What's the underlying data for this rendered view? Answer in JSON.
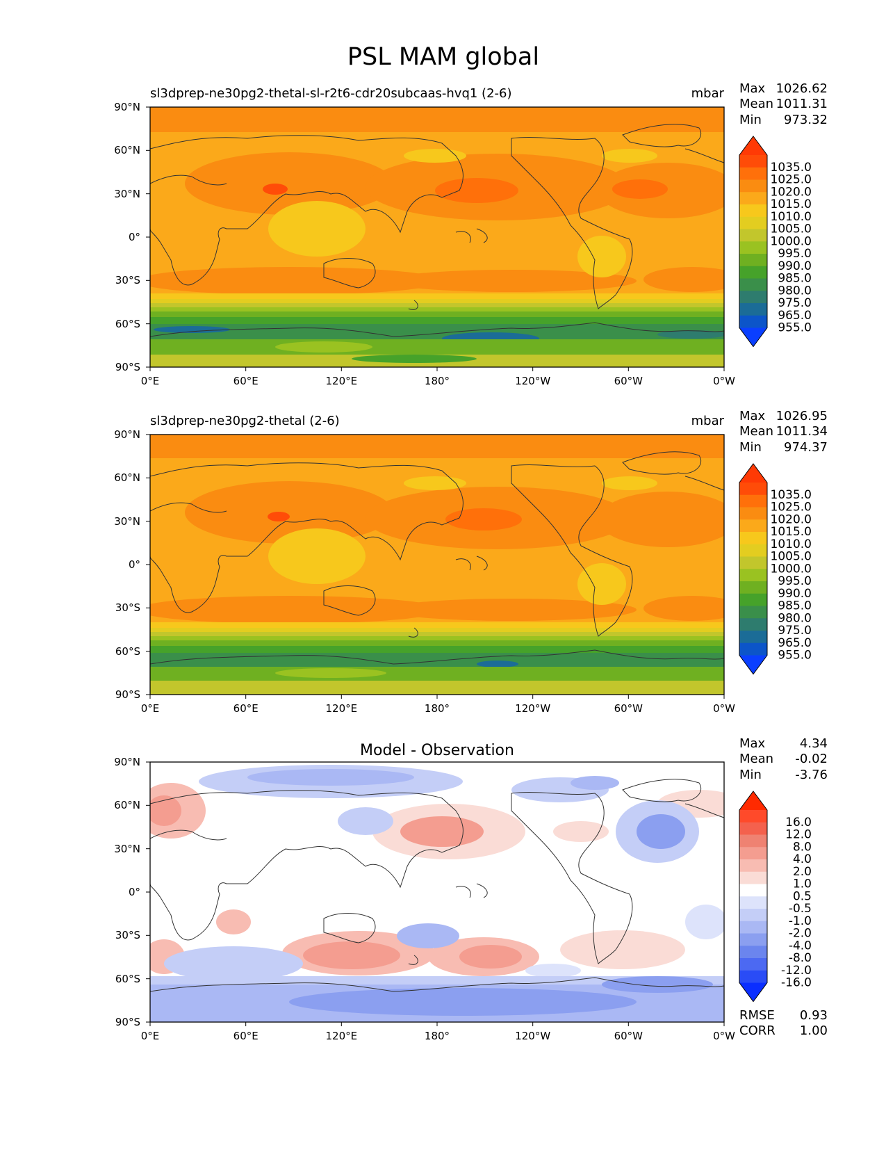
{
  "title": "PSL MAM global",
  "axes": {
    "lat_labels": [
      "90°N",
      "60°N",
      "30°N",
      "0°",
      "30°S",
      "60°S",
      "90°S"
    ],
    "lon_labels": [
      "0°E",
      "60°E",
      "120°E",
      "180°",
      "120°W",
      "60°W",
      "0°W"
    ]
  },
  "panels": [
    {
      "title_left": "sl3dprep-ne30pg2-thetal-sl-r2t6-cdr20subcaas-hvq1 (2-6)",
      "title_center": "",
      "units": "mbar",
      "stats": [
        {
          "label": "Max",
          "value": "1026.62"
        },
        {
          "label": "Mean",
          "value": "1011.31"
        },
        {
          "label": "Min",
          "value": "973.32"
        }
      ],
      "colorbar_labels": [
        "1035.0",
        "1025.0",
        "1020.0",
        "1015.0",
        "1010.0",
        "1005.0",
        "1000.0",
        "995.0",
        "990.0",
        "985.0",
        "980.0",
        "975.0",
        "965.0",
        "955.0"
      ],
      "colorbar_colors": [
        "#ff3a05",
        "#ff4c08",
        "#ff700a",
        "#fa8c11",
        "#fba91a",
        "#f7c81c",
        "#e3cd20",
        "#c2c62c",
        "#9ac221",
        "#6fb021",
        "#46a22a",
        "#3a8f4a",
        "#2e7c6e",
        "#1b6c97",
        "#0c55c9",
        "#0a3fff"
      ],
      "chart_data": {
        "type": "heatmap",
        "field": "sea level pressure",
        "units": "mbar",
        "max": 1026.62,
        "mean": 1011.31,
        "min": 973.32,
        "levels": [
          955,
          965,
          975,
          980,
          985,
          990,
          995,
          1000,
          1005,
          1010,
          1015,
          1020,
          1025,
          1035
        ]
      }
    },
    {
      "title_left": "sl3dprep-ne30pg2-thetal (2-6)",
      "title_center": "",
      "units": "mbar",
      "stats": [
        {
          "label": "Max",
          "value": "1026.95"
        },
        {
          "label": "Mean",
          "value": "1011.34"
        },
        {
          "label": "Min",
          "value": "974.37"
        }
      ],
      "colorbar_labels": [
        "1035.0",
        "1025.0",
        "1020.0",
        "1015.0",
        "1010.0",
        "1005.0",
        "1000.0",
        "995.0",
        "990.0",
        "985.0",
        "980.0",
        "975.0",
        "965.0",
        "955.0"
      ],
      "colorbar_colors": [
        "#ff3a05",
        "#ff4c08",
        "#ff700a",
        "#fa8c11",
        "#fba91a",
        "#f7c81c",
        "#e3cd20",
        "#c2c62c",
        "#9ac221",
        "#6fb021",
        "#46a22a",
        "#3a8f4a",
        "#2e7c6e",
        "#1b6c97",
        "#0c55c9",
        "#0a3fff"
      ],
      "chart_data": {
        "type": "heatmap",
        "field": "sea level pressure",
        "units": "mbar",
        "max": 1026.95,
        "mean": 1011.34,
        "min": 974.37,
        "levels": [
          955,
          965,
          975,
          980,
          985,
          990,
          995,
          1000,
          1005,
          1010,
          1015,
          1020,
          1025,
          1035
        ]
      }
    },
    {
      "title_left": "",
      "title_center": "Model - Observation",
      "units": "",
      "stats": [
        {
          "label": "Max",
          "value": "4.34"
        },
        {
          "label": "Mean",
          "value": "-0.02"
        },
        {
          "label": "Min",
          "value": "-3.76"
        }
      ],
      "colorbar_labels": [
        "16.0",
        "12.0",
        "8.0",
        "4.0",
        "2.0",
        "1.0",
        "0.5",
        "-0.5",
        "-1.0",
        "-2.0",
        "-4.0",
        "-8.0",
        "-12.0",
        "-16.0"
      ],
      "colorbar_colors": [
        "#ff2a00",
        "#ff4a2a",
        "#f4614d",
        "#ef8272",
        "#f49d90",
        "#f8bcb2",
        "#fadcd6",
        "#ffffff",
        "#dde3fb",
        "#c4cef7",
        "#aab8f4",
        "#8b9ff0",
        "#6b85ee",
        "#4c69f2",
        "#2a4cf6",
        "#0a2eff"
      ],
      "chart_data": {
        "type": "heatmap",
        "field": "sea level pressure difference",
        "max": 4.34,
        "mean": -0.02,
        "min": -3.76,
        "levels": [
          -16,
          -12,
          -8,
          -4,
          -2,
          -1,
          -0.5,
          0.5,
          1,
          2,
          4,
          8,
          12,
          16
        ]
      },
      "footer_stats": [
        {
          "label": "RMSE",
          "value": "0.93"
        },
        {
          "label": "CORR",
          "value": "1.00"
        }
      ]
    }
  ]
}
